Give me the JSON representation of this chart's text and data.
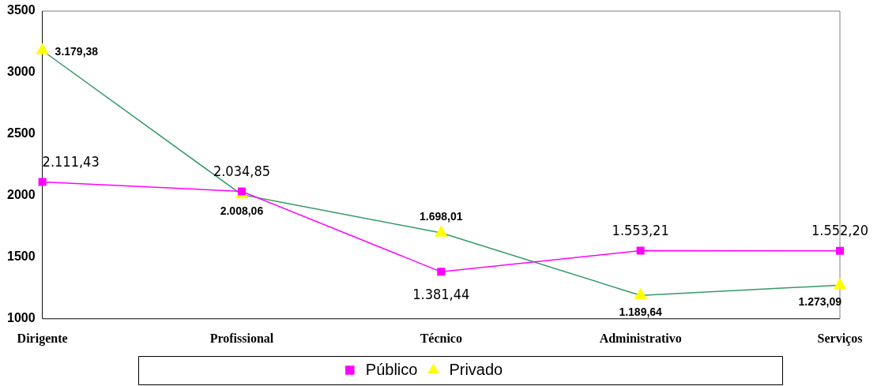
{
  "chart_data": {
    "type": "line",
    "categories": [
      "Dirigente",
      "Profissional",
      "Técnico",
      "Administrativo",
      "Serviços"
    ],
    "series": [
      {
        "name": "Público",
        "color": "#ff00ff",
        "marker": "square",
        "values": [
          2111.43,
          2034.85,
          1381.44,
          1553.21,
          1552.2
        ],
        "value_labels": [
          "2.111,43",
          "2.034,85",
          "1.381,44",
          "1.553,21",
          "1.552,20"
        ]
      },
      {
        "name": "Privado",
        "color": "#339966",
        "colors": [
          "#ffff00",
          "#ffff00",
          "#ffff00",
          "#ffff00",
          "#ffff00"
        ],
        "marker": "triangle",
        "values": [
          3179.38,
          2008.06,
          1698.01,
          1189.64,
          1273.09
        ],
        "value_labels": [
          "3.179,38",
          "2.008,06",
          "1.698,01",
          "1.189,64",
          "1.273,09"
        ]
      }
    ],
    "ylim": [
      1000,
      3500
    ],
    "yticks": [
      1000,
      1500,
      2000,
      2500,
      3000,
      3500
    ],
    "grid": false,
    "legend": "bottom"
  }
}
